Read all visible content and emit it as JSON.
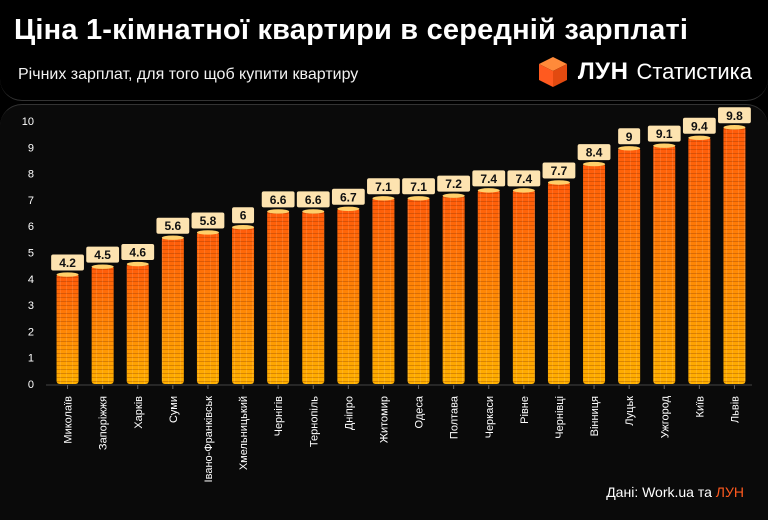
{
  "header": {
    "title": "Ціна 1-кімнатної квартири в середній зарплаті",
    "subtitle": "Річних зарплат, для того щоб купити квартиру",
    "brand_name": "ЛУН",
    "brand_sub": "Статистика",
    "brand_icon": "orange-cube-icon"
  },
  "footer": {
    "source_prefix": "Дані: Work.ua та",
    "source_brand": "ЛУН"
  },
  "colors": {
    "bar_bottom": "#ffb000",
    "bar_top": "#ff5a0a",
    "label_bg": "#fde3b0",
    "brand": "#ff5a1f"
  },
  "chart_data": {
    "type": "bar",
    "title": "Ціна 1-кімнатної квартири в середній зарплаті",
    "subtitle": "Річних зарплат, для того щоб купити квартиру",
    "categories": [
      "Миколаїв",
      "Запоріжжя",
      "Харків",
      "Суми",
      "Івано-Франківськ",
      "Хмельницький",
      "Чернігів",
      "Тернопіль",
      "Дніпро",
      "Житомир",
      "Одеса",
      "Полтава",
      "Черкаси",
      "Рівне",
      "Чернівці",
      "Вінниця",
      "Луцьк",
      "Ужгород",
      "Київ",
      "Львів"
    ],
    "values": [
      4.2,
      4.5,
      4.6,
      5.6,
      5.8,
      6,
      6.6,
      6.6,
      6.7,
      7.1,
      7.1,
      7.2,
      7.4,
      7.4,
      7.7,
      8.4,
      9,
      9.1,
      9.4,
      9.8
    ],
    "ylim": [
      0,
      10
    ],
    "yticks": [
      0,
      1,
      2,
      3,
      4,
      5,
      6,
      7,
      8,
      9,
      10
    ],
    "xlabel": "",
    "ylabel": "",
    "grid": false
  }
}
